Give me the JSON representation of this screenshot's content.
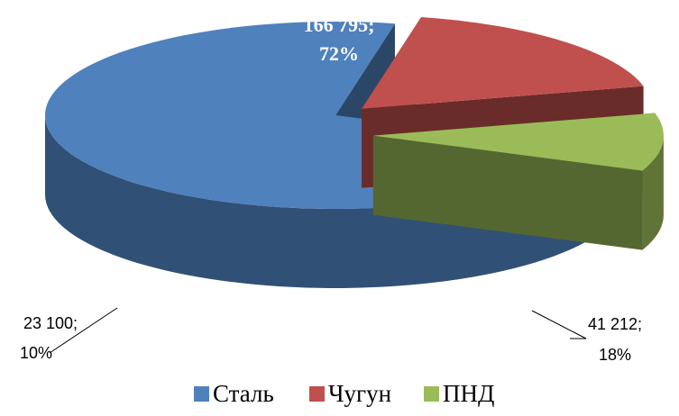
{
  "chart_data": {
    "type": "pie",
    "categories": [
      "Сталь",
      "Чугун",
      "ПНД"
    ],
    "values": [
      166795,
      41212,
      23100
    ],
    "value_labels": [
      "166 795;",
      "41 212;",
      "23 100;"
    ],
    "percents": [
      72,
      18,
      10
    ],
    "percent_labels": [
      "72%",
      "18%",
      "10%"
    ],
    "colors": [
      "#4f81bd",
      "#c0504d",
      "#9bbb59"
    ],
    "exploded": [
      false,
      true,
      true
    ],
    "legend": "bottom"
  }
}
